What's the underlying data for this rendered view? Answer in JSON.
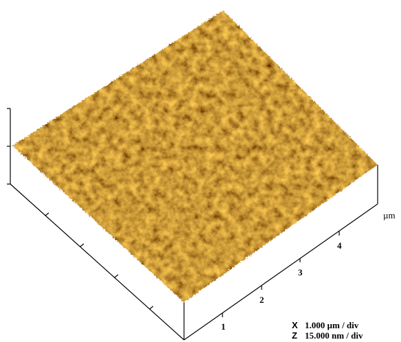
{
  "axis": {
    "tick_labels": [
      "1",
      "2",
      "3",
      "4"
    ],
    "unit": "µm"
  },
  "scale": {
    "x": {
      "letter": "X",
      "text": "1.000 µm / div"
    },
    "z": {
      "letter": "Z",
      "text": "15.000 nm / div"
    }
  }
}
